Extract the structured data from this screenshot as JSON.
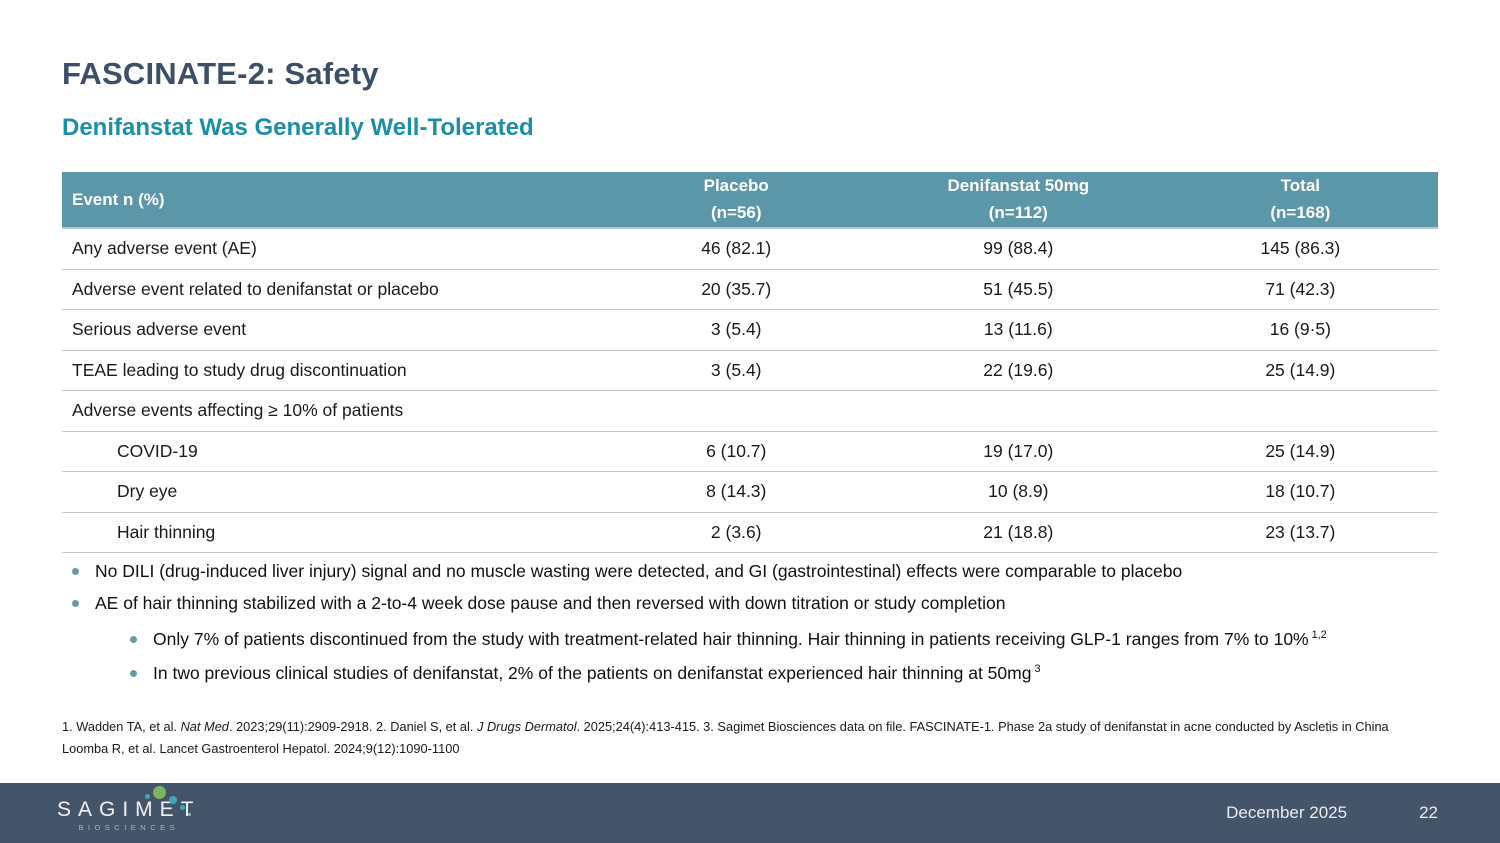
{
  "slide": {
    "title": "FASCINATE-2: Safety",
    "subtitle": "Denifanstat Was Generally Well-Tolerated"
  },
  "table": {
    "header": {
      "event_col": "Event n (%)",
      "cols": [
        {
          "label": "Placebo",
          "sub": "(n=56)"
        },
        {
          "label": "Denifanstat 50mg",
          "sub": "(n=112)"
        },
        {
          "label": "Total",
          "sub": "(n=168)"
        }
      ]
    },
    "rows": [
      {
        "label": "Any adverse event (AE)",
        "values": [
          "46 (82.1)",
          "99 (88.4)",
          "145 (86.3)"
        ]
      },
      {
        "label": "Adverse event related to denifanstat or placebo",
        "values": [
          "20 (35.7)",
          "51 (45.5)",
          "71 (42.3)"
        ]
      },
      {
        "label": "Serious adverse event",
        "values": [
          "3 (5.4)",
          "13 (11.6)",
          "16 (9·5)"
        ]
      },
      {
        "label": "TEAE leading to study drug discontinuation",
        "values": [
          "3 (5.4)",
          "22 (19.6)",
          "25 (14.9)"
        ]
      },
      {
        "label": "Adverse events affecting ≥ 10% of patients",
        "values": [
          "",
          "",
          ""
        ]
      },
      {
        "label": "COVID-19",
        "values": [
          "6 (10.7)",
          "19 (17.0)",
          "25 (14.9)"
        ]
      },
      {
        "label": "Dry eye",
        "values": [
          "8 (14.3)",
          "10 (8.9)",
          "18 (10.7)"
        ]
      },
      {
        "label": "Hair thinning",
        "values": [
          "2 (3.6)",
          "21 (18.8)",
          "23 (13.7)"
        ]
      }
    ]
  },
  "bullets": {
    "level1": [
      "No DILI (drug-induced liver injury) signal and no muscle wasting were detected, and GI (gastrointestinal) effects were comparable to placebo",
      "AE of hair thinning stabilized with a 2-to-4 week dose pause and then reversed with down titration or study completion"
    ],
    "level2": [
      {
        "text": "Only 7% of patients discontinued from the study with treatment-related hair thinning. Hair thinning in patients receiving GLP-1 ranges from 7% to 10%",
        "sup": "1,2"
      },
      {
        "text": "In two previous clinical studies of denifanstat, 2% of the patients on denifanstat experienced hair thinning at 50mg",
        "sup": "3"
      }
    ]
  },
  "footnotes": {
    "line1": {
      "p1": "1. Wadden TA, et al. ",
      "p2": "Nat Med",
      "p3": ". 2023;29(11):2909-2918. 2. Daniel S, et al. ",
      "p4": "J Drugs Dermatol",
      "p5": ". 2025;24(4):413-415. 3. Sagimet Biosciences data on file. FASCINATE-1. Phase 2a study of denifanstat in acne conducted by Ascletis in China"
    },
    "line2": "Loomba R, et al. Lancet Gastroenterol Hepatol. 2024;9(12):1090-1100"
  },
  "footer": {
    "logo_text": "SAGIMET",
    "logo_sub": "BIOSCIENCES",
    "date": "December 2025",
    "page": "22"
  },
  "colors": {
    "title": "#3d4f66",
    "subtitle": "#1b8fa6",
    "table_header_bg": "#5b97a9",
    "footer_bg": "#455569",
    "logo_dot_green": "#7db464",
    "logo_dot_teal": "#3aa9b8"
  }
}
